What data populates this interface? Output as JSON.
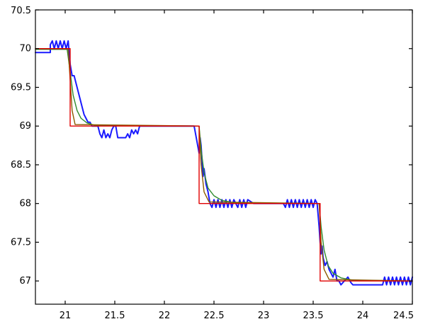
{
  "chart_data": {
    "type": "line",
    "title": "",
    "xlabel": "",
    "ylabel": "",
    "xlim": [
      20.7,
      24.5
    ],
    "ylim": [
      66.7,
      70.5
    ],
    "grid": false,
    "x_ticks": [
      21,
      21.5,
      22,
      22.5,
      23,
      23.5,
      24,
      24.5
    ],
    "x_tick_labels": [
      "21",
      "21.5",
      "22",
      "22.5",
      "23",
      "23.5",
      "24",
      "24.5"
    ],
    "y_ticks": [
      67,
      67.5,
      68,
      68.5,
      69,
      69.5,
      70,
      70.5
    ],
    "y_tick_labels": [
      "67",
      "67.5",
      "68",
      "68.5",
      "69",
      "69.5",
      "70",
      "70.5"
    ],
    "series": [
      {
        "color": "#1a1aff",
        "x": [
          20.7,
          20.85,
          20.85,
          20.87,
          20.89,
          20.91,
          20.93,
          20.95,
          20.97,
          20.99,
          21.01,
          21.03,
          21.04,
          21.05,
          21.07,
          21.09,
          21.11,
          21.13,
          21.15,
          21.17,
          21.19,
          21.21,
          21.23,
          21.25,
          21.27,
          21.29,
          21.31,
          21.33,
          21.35,
          21.37,
          21.39,
          21.41,
          21.43,
          21.45,
          21.47,
          21.49,
          21.51,
          21.53,
          21.55,
          21.57,
          21.59,
          21.61,
          21.63,
          21.65,
          21.67,
          21.69,
          21.71,
          21.73,
          21.75,
          21.9,
          22.1,
          22.3,
          22.35,
          22.36,
          22.37,
          22.38,
          22.39,
          22.4,
          22.42,
          22.44,
          22.46,
          22.48,
          22.5,
          22.52,
          22.54,
          22.56,
          22.58,
          22.6,
          22.62,
          22.64,
          22.66,
          22.68,
          22.7,
          22.72,
          22.74,
          22.76,
          22.78,
          22.8,
          22.82,
          22.84,
          22.9,
          23.0,
          23.1,
          23.2,
          23.22,
          23.24,
          23.26,
          23.28,
          23.3,
          23.32,
          23.34,
          23.36,
          23.38,
          23.4,
          23.42,
          23.44,
          23.46,
          23.48,
          23.5,
          23.52,
          23.54,
          23.56,
          23.57,
          23.58,
          23.59,
          23.6,
          23.62,
          23.64,
          23.66,
          23.68,
          23.7,
          23.72,
          23.74,
          23.76,
          23.78,
          23.8,
          23.85,
          23.88,
          23.9,
          23.92,
          23.95,
          24.0,
          24.05,
          24.1,
          24.15,
          24.2,
          24.22,
          24.24,
          24.26,
          24.28,
          24.3,
          24.32,
          24.34,
          24.36,
          24.38,
          24.4,
          24.42,
          24.44,
          24.46,
          24.48,
          24.5
        ],
        "y": [
          69.95,
          69.95,
          70.05,
          70.1,
          70.0,
          70.1,
          70.0,
          70.1,
          70.0,
          70.1,
          70.0,
          70.1,
          69.95,
          69.8,
          69.65,
          69.65,
          69.55,
          69.45,
          69.35,
          69.25,
          69.15,
          69.1,
          69.05,
          69.05,
          69.0,
          69.0,
          69.0,
          69.0,
          68.9,
          68.85,
          68.95,
          68.85,
          68.9,
          68.85,
          68.95,
          69.0,
          69.0,
          68.85,
          68.85,
          68.85,
          68.85,
          68.85,
          68.9,
          68.85,
          68.95,
          68.9,
          68.95,
          68.9,
          69.0,
          69.0,
          69.0,
          69.0,
          68.65,
          68.85,
          68.75,
          68.55,
          68.35,
          68.45,
          68.25,
          68.15,
          68.0,
          67.95,
          68.05,
          67.95,
          68.05,
          67.95,
          68.05,
          67.95,
          68.05,
          67.95,
          68.05,
          67.95,
          68.05,
          68.0,
          67.95,
          68.05,
          67.95,
          68.05,
          67.95,
          68.05,
          68.0,
          68.0,
          68.0,
          68.0,
          67.95,
          68.05,
          67.95,
          68.05,
          67.95,
          68.05,
          67.95,
          68.05,
          67.95,
          68.05,
          67.95,
          68.05,
          67.95,
          68.05,
          67.95,
          68.05,
          68.0,
          67.7,
          67.5,
          67.35,
          67.45,
          67.3,
          67.2,
          67.25,
          67.15,
          67.1,
          67.05,
          67.15,
          67.0,
          67.0,
          66.95,
          66.98,
          67.05,
          66.98,
          66.95,
          66.95,
          66.95,
          66.95,
          66.95,
          66.95,
          66.95,
          66.95,
          67.05,
          66.95,
          67.05,
          66.95,
          67.05,
          66.95,
          67.05,
          66.95,
          67.05,
          66.95,
          67.05,
          66.95,
          67.05,
          66.95,
          67.05
        ]
      },
      {
        "color": "#2e8b2e",
        "x": [
          20.7,
          21.02,
          21.05,
          21.08,
          21.12,
          21.16,
          21.22,
          21.3,
          22.35,
          22.37,
          22.4,
          22.44,
          22.5,
          22.58,
          22.7,
          23.56,
          23.58,
          23.61,
          23.65,
          23.7,
          23.78,
          23.9,
          24.5
        ],
        "y": [
          69.99,
          69.99,
          69.7,
          69.4,
          69.2,
          69.1,
          69.04,
          69.01,
          69.0,
          68.7,
          68.4,
          68.2,
          68.1,
          68.04,
          68.01,
          68.0,
          67.7,
          67.4,
          67.2,
          67.1,
          67.04,
          67.01,
          67.0
        ]
      },
      {
        "color": "#8b5a00",
        "x": [
          20.7,
          21.03,
          21.05,
          21.07,
          21.1,
          22.35,
          22.37,
          22.4,
          22.45,
          23.56,
          23.58,
          23.61,
          23.66,
          24.5
        ],
        "y": [
          70.0,
          70.0,
          69.6,
          69.2,
          69.02,
          69.0,
          68.5,
          68.15,
          68.02,
          68.0,
          67.5,
          67.15,
          67.02,
          67.0
        ]
      },
      {
        "color": "#e00000",
        "x": [
          20.7,
          21.05,
          21.05,
          22.35,
          22.35,
          23.57,
          23.57,
          24.5
        ],
        "y": [
          70.0,
          70.0,
          69.0,
          69.0,
          68.0,
          68.0,
          67.0,
          67.0
        ]
      }
    ]
  }
}
